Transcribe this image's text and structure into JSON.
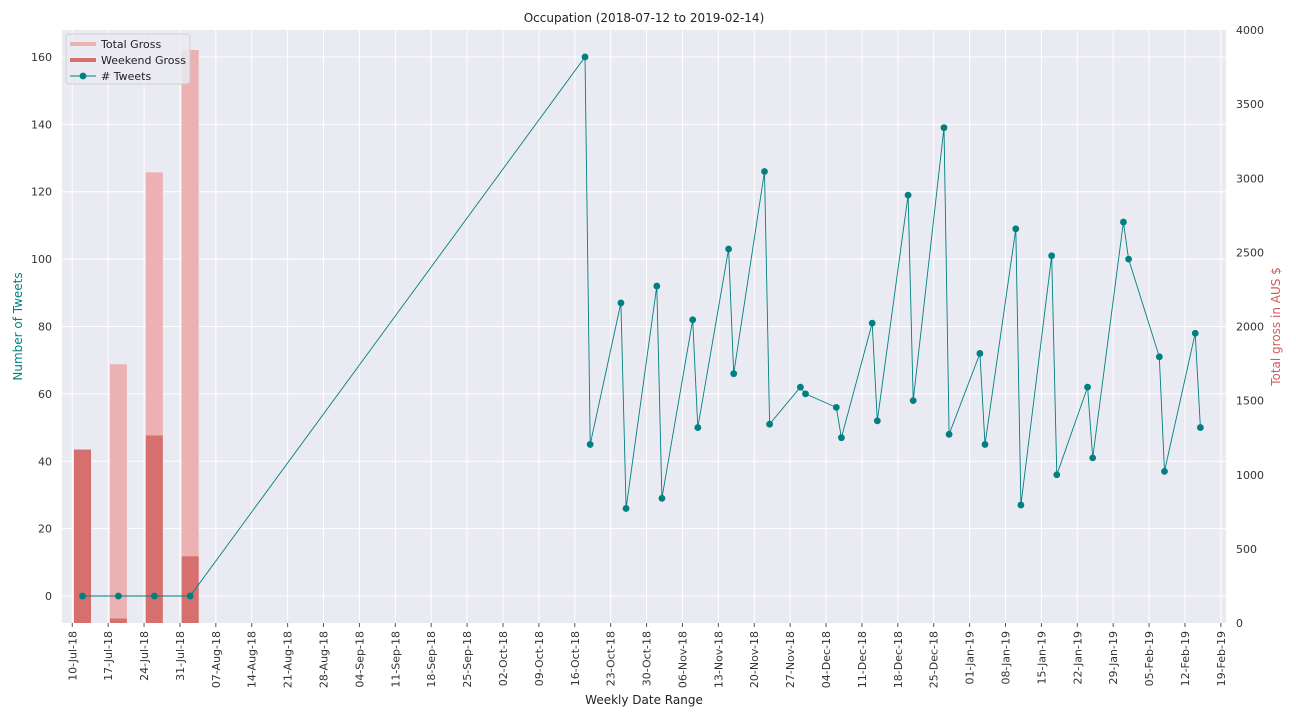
{
  "chart_data": {
    "type": "line",
    "title": "Occupation (2018-07-12 to 2019-02-14)",
    "xlabel": "Weekly Date Range",
    "ylabel_left": "Number of Tweets",
    "ylabel_right": "Total gross in AUS $",
    "colors": {
      "tweets": "#008080",
      "total_gross": "#ecb1b3",
      "weekend_gross": "#d5706f",
      "plot_bg": "#eaeaf2",
      "grid": "#ffffff",
      "ylabel_right": "#cd5c5c"
    },
    "x_ticks": [
      "10-Jul-18",
      "17-Jul-18",
      "24-Jul-18",
      "31-Jul-18",
      "07-Aug-18",
      "14-Aug-18",
      "21-Aug-18",
      "28-Aug-18",
      "04-Sep-18",
      "11-Sep-18",
      "18-Sep-18",
      "25-Sep-18",
      "02-Oct-18",
      "09-Oct-18",
      "16-Oct-18",
      "23-Oct-18",
      "30-Oct-18",
      "06-Nov-18",
      "13-Nov-18",
      "20-Nov-18",
      "27-Nov-18",
      "04-Dec-18",
      "11-Dec-18",
      "18-Dec-18",
      "25-Dec-18",
      "01-Jan-19",
      "08-Jan-19",
      "15-Jan-19",
      "22-Jan-19",
      "29-Jan-19",
      "05-Feb-19",
      "12-Feb-19",
      "19-Feb-19"
    ],
    "x_range": [
      "2018-07-08",
      "2019-02-20"
    ],
    "y_left_ticks": [
      0,
      20,
      40,
      60,
      80,
      100,
      120,
      140,
      160
    ],
    "y_left_range": [
      -8,
      168
    ],
    "y_right_ticks": [
      0,
      500,
      1000,
      1500,
      2000,
      2500,
      3000,
      3500,
      4000
    ],
    "y_right_range": [
      0,
      4000
    ],
    "grid": true,
    "legend_placement": "top-left",
    "legend": [
      "Total Gross",
      "Weekend Gross",
      "# Tweets"
    ],
    "bars": {
      "dates": [
        "2018-07-12",
        "2018-07-19",
        "2018-07-26",
        "2018-08-02"
      ],
      "total_gross": [
        1160,
        1745,
        3040,
        3865
      ],
      "weekend_gross": [
        1170,
        30,
        1265,
        450
      ]
    },
    "tweets": [
      {
        "x": "2018-07-12",
        "y": 0
      },
      {
        "x": "2018-07-19",
        "y": 0
      },
      {
        "x": "2018-07-26",
        "y": 0
      },
      {
        "x": "2018-08-02",
        "y": 0
      },
      {
        "x": "2018-10-18",
        "y": 160
      },
      {
        "x": "2018-10-19",
        "y": 45
      },
      {
        "x": "2018-10-25",
        "y": 87
      },
      {
        "x": "2018-10-26",
        "y": 26
      },
      {
        "x": "2018-11-01",
        "y": 92
      },
      {
        "x": "2018-11-02",
        "y": 29
      },
      {
        "x": "2018-11-08",
        "y": 82
      },
      {
        "x": "2018-11-09",
        "y": 50
      },
      {
        "x": "2018-11-15",
        "y": 103
      },
      {
        "x": "2018-11-16",
        "y": 66
      },
      {
        "x": "2018-11-22",
        "y": 126
      },
      {
        "x": "2018-11-23",
        "y": 51
      },
      {
        "x": "2018-11-29",
        "y": 62
      },
      {
        "x": "2018-11-30",
        "y": 60
      },
      {
        "x": "2018-12-06",
        "y": 56
      },
      {
        "x": "2018-12-07",
        "y": 47
      },
      {
        "x": "2018-12-13",
        "y": 81
      },
      {
        "x": "2018-12-14",
        "y": 52
      },
      {
        "x": "2018-12-20",
        "y": 119
      },
      {
        "x": "2018-12-21",
        "y": 58
      },
      {
        "x": "2018-12-27",
        "y": 139
      },
      {
        "x": "2018-12-28",
        "y": 48
      },
      {
        "x": "2019-01-03",
        "y": 72
      },
      {
        "x": "2019-01-04",
        "y": 45
      },
      {
        "x": "2019-01-10",
        "y": 109
      },
      {
        "x": "2019-01-11",
        "y": 27
      },
      {
        "x": "2019-01-17",
        "y": 101
      },
      {
        "x": "2019-01-18",
        "y": 36
      },
      {
        "x": "2019-01-24",
        "y": 62
      },
      {
        "x": "2019-01-25",
        "y": 41
      },
      {
        "x": "2019-01-31",
        "y": 111
      },
      {
        "x": "2019-02-01",
        "y": 100
      },
      {
        "x": "2019-02-07",
        "y": 71
      },
      {
        "x": "2019-02-08",
        "y": 37
      },
      {
        "x": "2019-02-14",
        "y": 78
      },
      {
        "x": "2019-02-15",
        "y": 50
      }
    ]
  }
}
